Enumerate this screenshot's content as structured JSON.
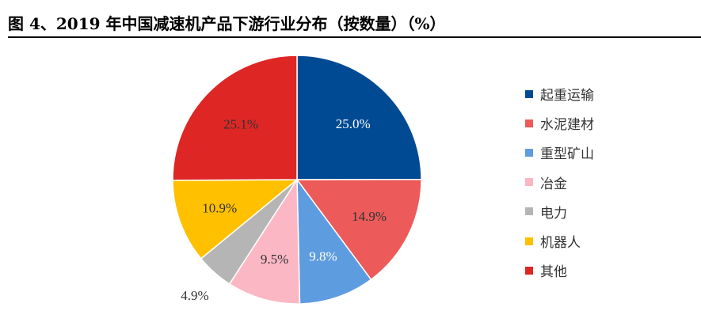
{
  "title": "图 4、2019 年中国减速机产品下游行业分布（按数量）（%）",
  "chart_data": {
    "type": "pie",
    "title": "图 4、2019 年中国减速机产品下游行业分布（按数量）（%）",
    "labels": [
      "起重运输",
      "水泥建材",
      "重型矿山",
      "冶金",
      "电力",
      "机器人",
      "其他"
    ],
    "values": [
      25.0,
      14.9,
      9.8,
      9.5,
      4.9,
      10.9,
      25.1
    ],
    "value_labels": [
      "25.0%",
      "14.9%",
      "9.8%",
      "9.5%",
      "4.9%",
      "10.9%",
      "25.1%"
    ],
    "colors": [
      "#004A94",
      "#EC5A5A",
      "#5E9CE0",
      "#FBB7C4",
      "#B5B5B5",
      "#FFC000",
      "#DE2625"
    ],
    "legend_position": "right"
  }
}
